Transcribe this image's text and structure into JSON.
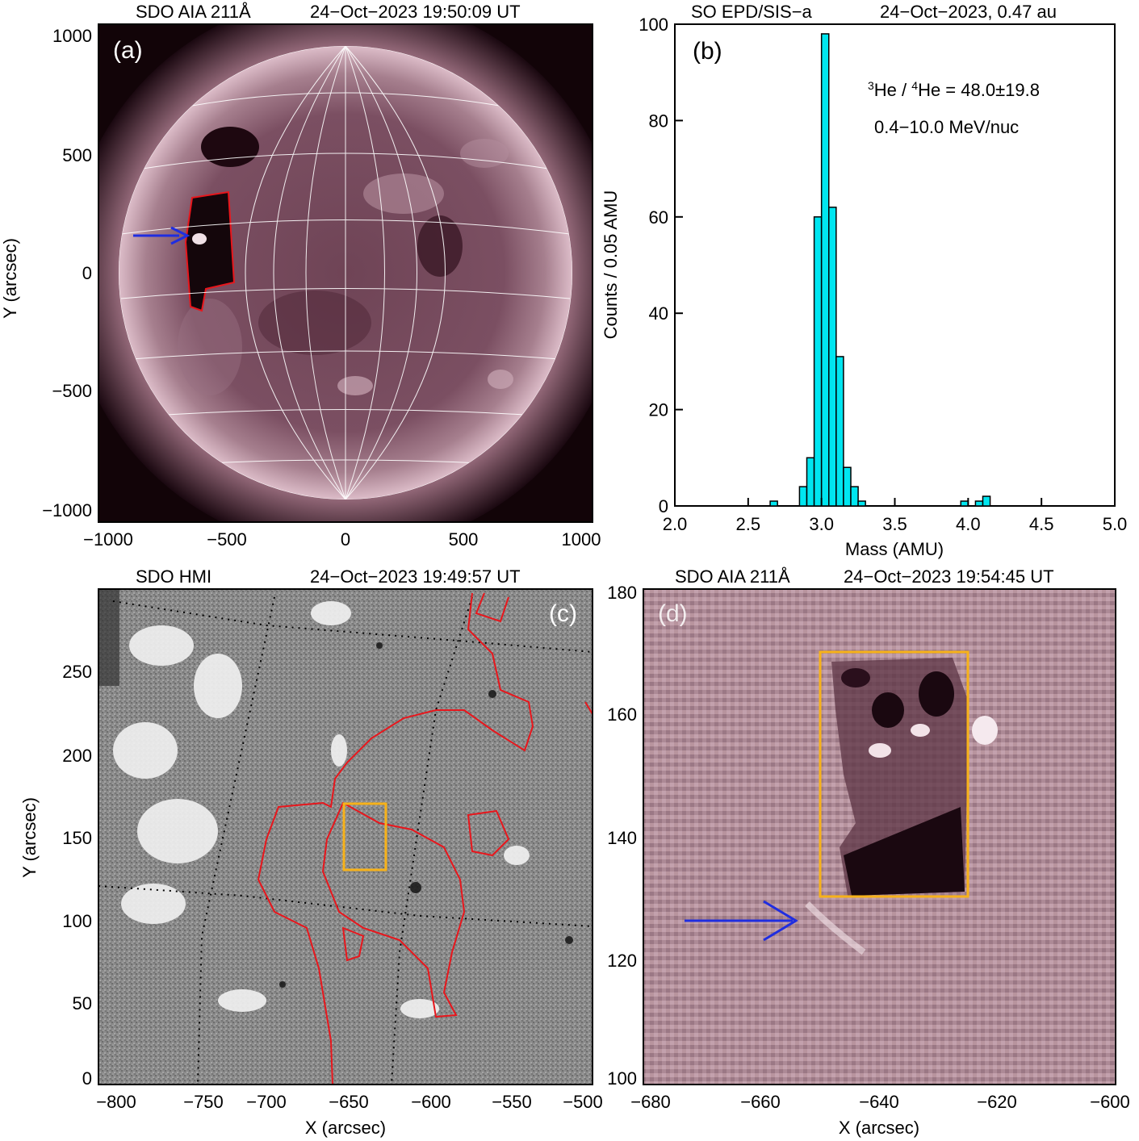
{
  "panels": {
    "a": {
      "label": "(a)",
      "title_left": "SDO AIA 211Å",
      "title_right": "24−Oct−2023 19:50:09 UT",
      "ylabel": "Y (arcsec)",
      "xticks": [
        "−1000",
        "−500",
        "0",
        "500",
        "1000"
      ],
      "yticks": [
        "1000",
        "500",
        "0",
        "−500",
        "−1000"
      ]
    },
    "b": {
      "label": "(b)",
      "title_left": "SO EPD/SIS−a",
      "title_right": "24−Oct−2023, 0.47 au",
      "xlabel": "Mass (AMU)",
      "ylabel": "Counts / 0.05 AMU",
      "ratio_sup1": "3",
      "ratio_mid": "He / ",
      "ratio_sup2": "4",
      "ratio_end": "He = 48.0±19.8",
      "energy": "0.4−10.0 MeV/nuc"
    },
    "c": {
      "label": "(c)",
      "title_left": "SDO HMI",
      "title_right": "24−Oct−2023 19:49:57 UT",
      "xlabel": "X (arcsec)",
      "ylabel": "Y (arcsec)",
      "xticks": [
        "−800",
        "−750",
        "−700",
        "−650",
        "−600",
        "−550",
        "−500"
      ],
      "yticks": [
        "250",
        "200",
        "150",
        "100",
        "50",
        "0"
      ]
    },
    "d": {
      "label": "(d)",
      "title_left": "SDO AIA 211Å",
      "title_right": "24−Oct−2023 19:54:45 UT",
      "xlabel": "X (arcsec)",
      "xticks": [
        "−680",
        "−660",
        "−640",
        "−620",
        "−600"
      ],
      "yticks": [
        "180",
        "160",
        "140",
        "120",
        "100"
      ]
    }
  },
  "colors": {
    "histogram_fill": "#00e6f0",
    "contour": "#e8161c",
    "box": "#f7b21a",
    "arrow": "#1f2de0",
    "aia_dark": "#2a0f1c",
    "aia_light": "#d8b3c0"
  },
  "chart_data": [
    {
      "panel": "a",
      "type": "heatmap",
      "xlim": [
        -1000,
        1000
      ],
      "ylim": [
        -1000,
        1000
      ],
      "grid": true
    },
    {
      "panel": "b",
      "type": "bar",
      "xlim": [
        2.0,
        5.0
      ],
      "ylim": [
        0,
        100
      ],
      "xticks": [
        2.0,
        2.5,
        3.0,
        3.5,
        4.0,
        4.5,
        5.0
      ],
      "yticks": [
        0,
        20,
        40,
        60,
        80,
        100
      ],
      "bin_width": 0.05,
      "bins": [
        2.65,
        2.85,
        2.9,
        2.95,
        3.0,
        3.05,
        3.1,
        3.15,
        3.2,
        3.25,
        3.95,
        4.05,
        4.1
      ],
      "values": [
        1,
        4,
        10,
        60,
        98,
        62,
        31,
        8,
        4,
        1,
        1,
        1,
        2
      ]
    },
    {
      "panel": "c",
      "type": "heatmap",
      "xlim": [
        -800,
        -500
      ],
      "ylim": [
        0,
        295
      ]
    },
    {
      "panel": "d",
      "type": "heatmap",
      "xlim": [
        -680,
        -600
      ],
      "ylim": [
        100,
        180
      ]
    }
  ]
}
